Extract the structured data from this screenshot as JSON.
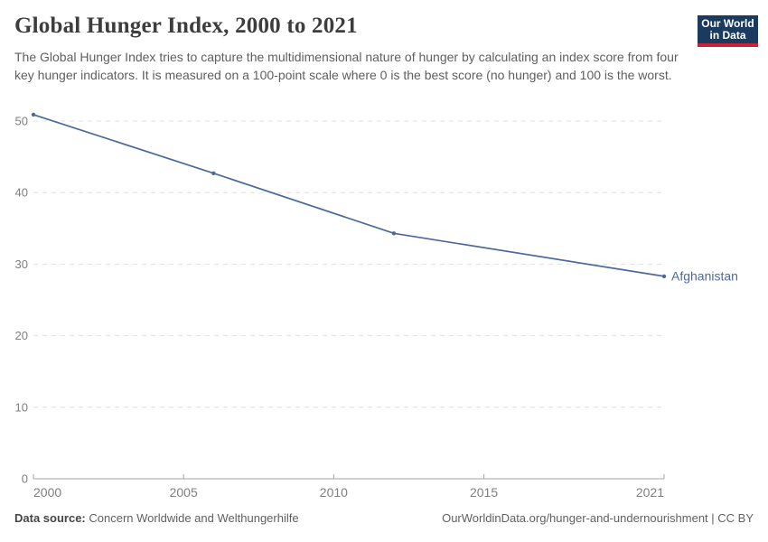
{
  "header": {
    "title": "Global Hunger Index, 2000 to 2021",
    "subtitle": "The Global Hunger Index tries to capture the multidimensional nature of hunger by calculating an index score from four key hunger indicators. It is measured on a 100-point scale where 0 is the best score (no hunger) and 100 is the worst.",
    "logo": {
      "line1": "Our World",
      "line2": "in Data",
      "bg_color": "#1b3a60",
      "bar_color": "#c82337"
    }
  },
  "chart_data": {
    "type": "line",
    "title": "Global Hunger Index, 2000 to 2021",
    "xlabel": "",
    "ylabel": "",
    "x_range": [
      2000,
      2021
    ],
    "ylim": [
      0,
      50
    ],
    "x_ticks": [
      2000,
      2005,
      2010,
      2015,
      2021
    ],
    "y_ticks": [
      0,
      10,
      20,
      30,
      40,
      50
    ],
    "grid": "horizontal-dashed",
    "legend_position": "end-of-line-label",
    "series": [
      {
        "name": "Afghanistan",
        "color": "#4c6a9c",
        "x": [
          2000,
          2006,
          2012,
          2021
        ],
        "values": [
          50.9,
          42.7,
          34.3,
          28.3
        ]
      }
    ],
    "grid_color": "#e0e0e0",
    "axis_color": "#a3a3a3",
    "tick_color": "#7f7f7f"
  },
  "footer": {
    "source_label": "Data source:",
    "source_value": "Concern Worldwide and Welthungerhilfe",
    "link_text": "OurWorldinData.org/hunger-and-undernourishment | CC BY"
  }
}
